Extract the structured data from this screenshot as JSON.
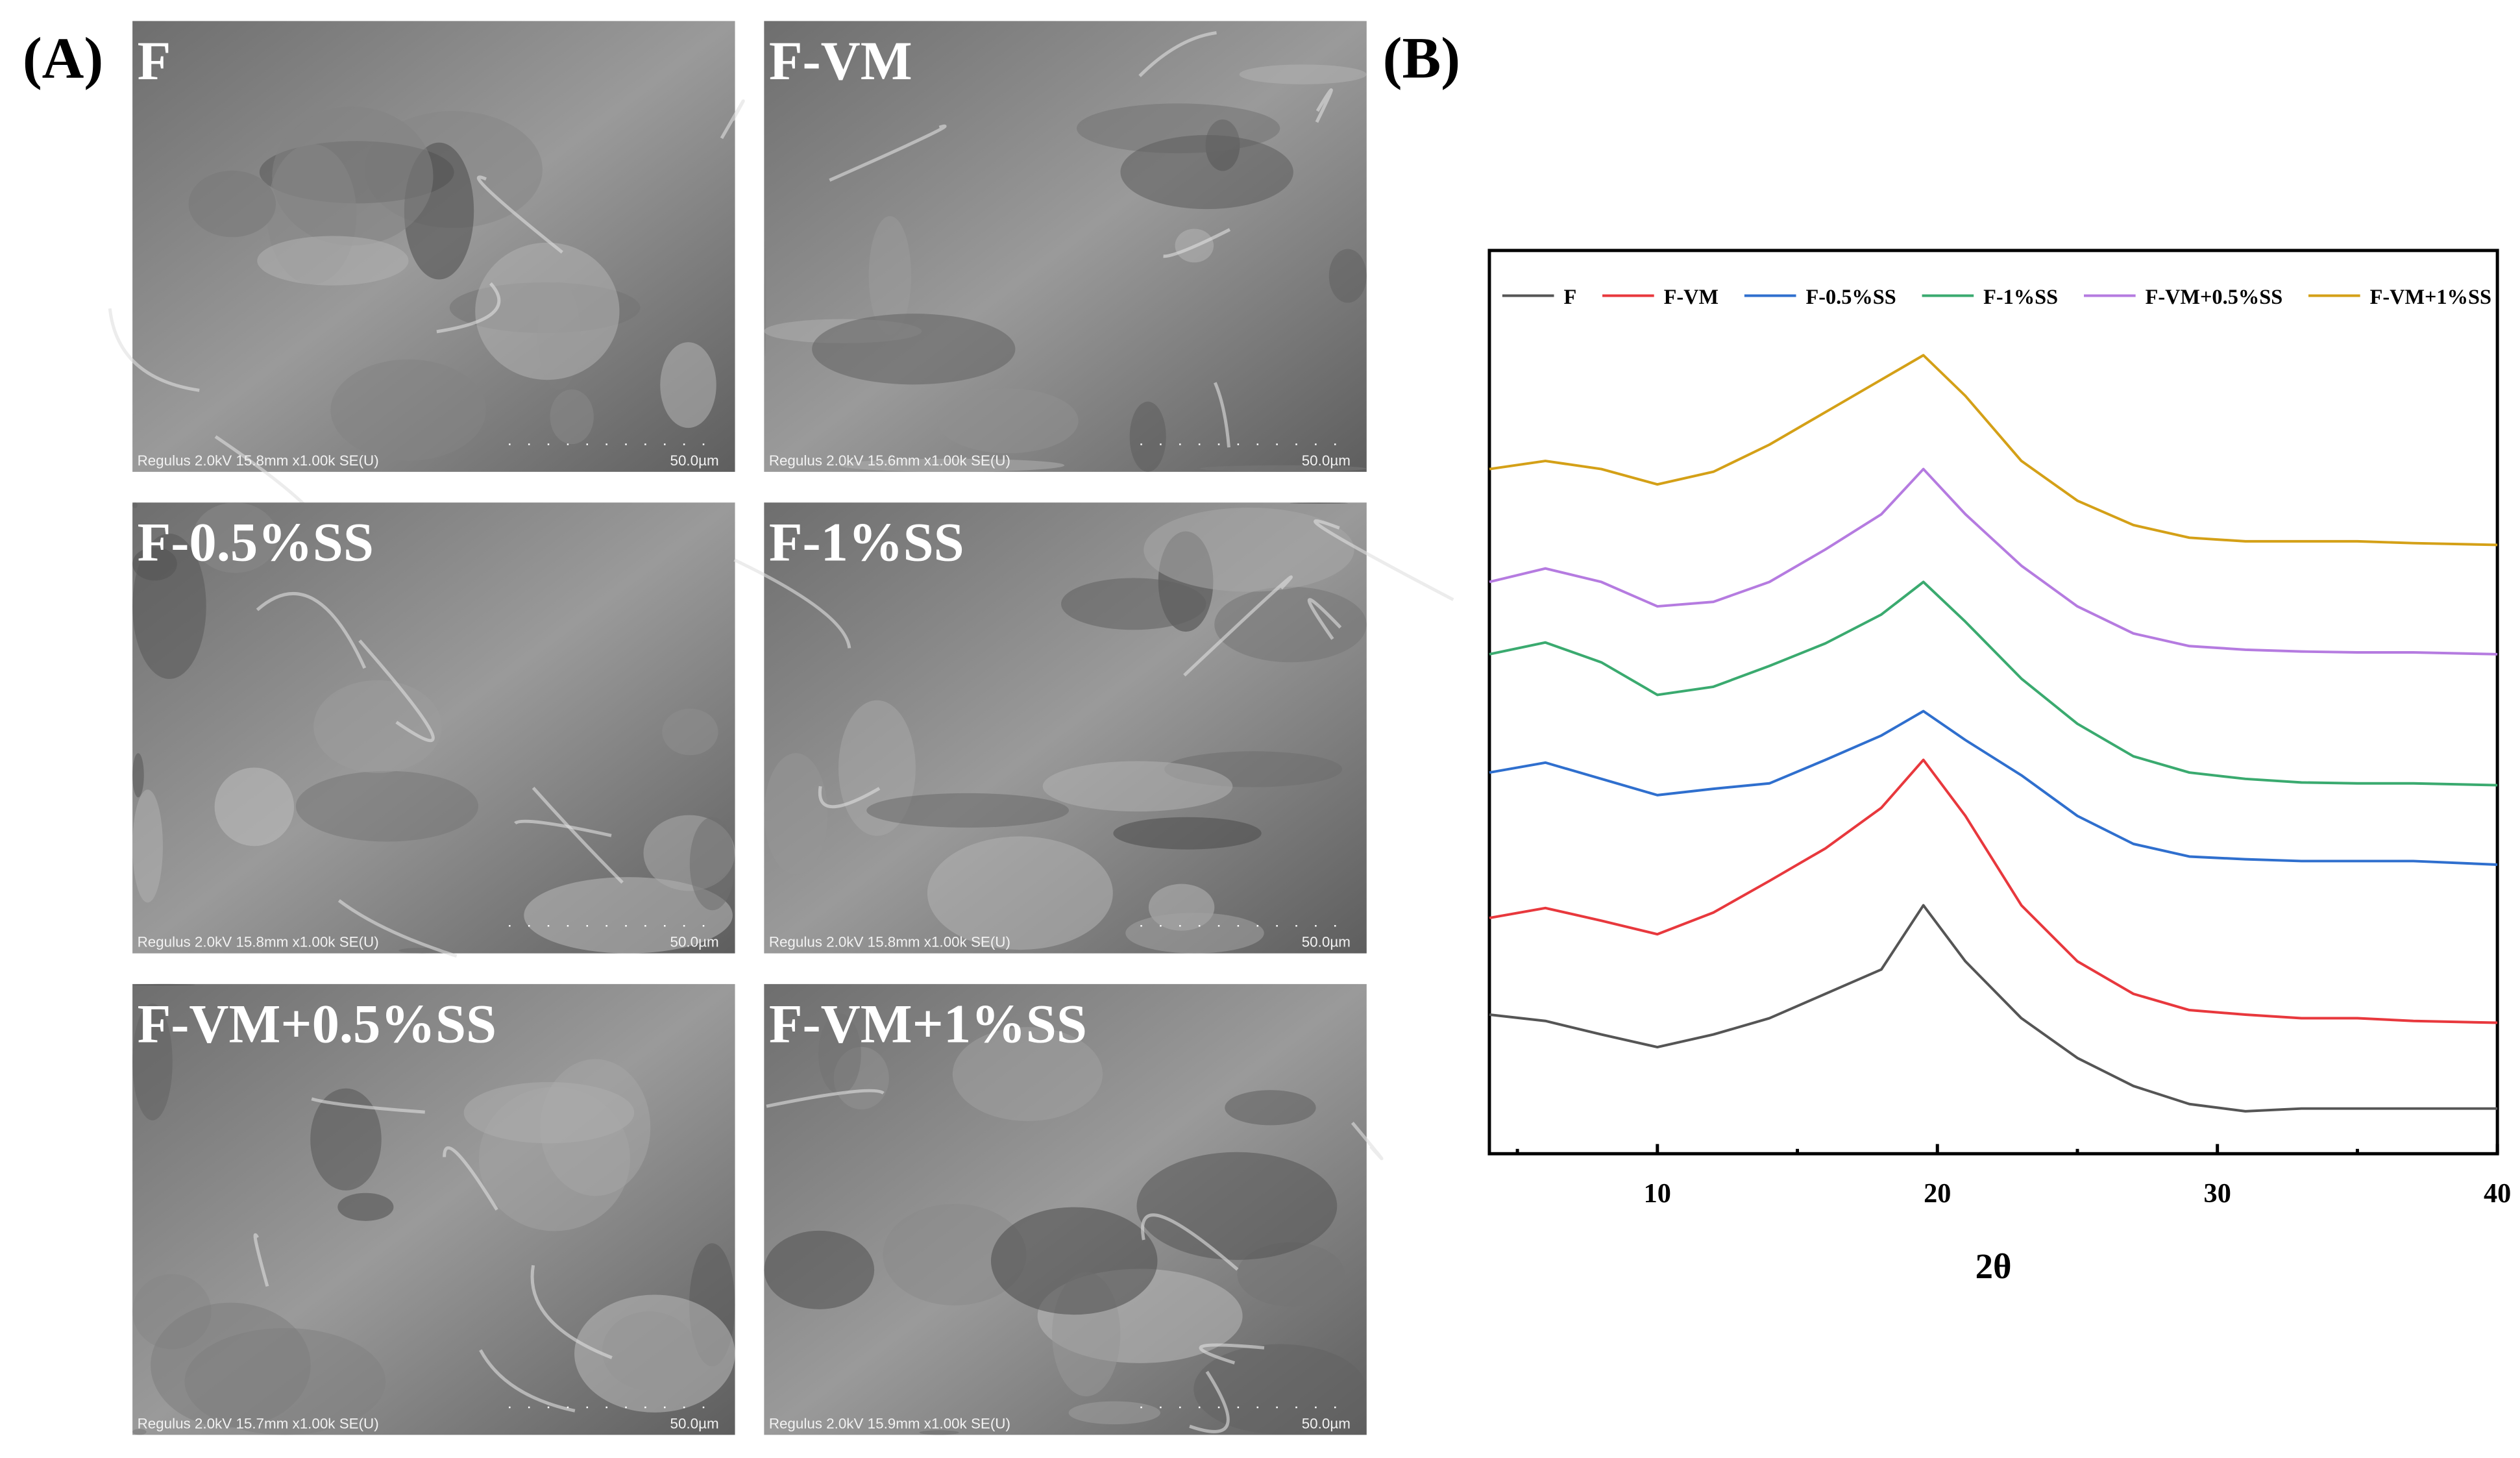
{
  "panel_a": {
    "label": "(A)",
    "images": [
      {
        "label": "F",
        "caption": "Regulus 2.0kV 15.8mm x1.00k SE(U)",
        "scale": "50.0µm"
      },
      {
        "label": "F-VM",
        "caption": "Regulus 2.0kV 15.6mm x1.00k SE(U)",
        "scale": "50.0µm"
      },
      {
        "label": "F-0.5%SS",
        "caption": "Regulus 2.0kV 15.8mm x1.00k SE(U)",
        "scale": "50.0µm"
      },
      {
        "label": "F-1%SS",
        "caption": "Regulus 2.0kV 15.8mm x1.00k SE(U)",
        "scale": "50.0µm"
      },
      {
        "label": "F-VM+0.5%SS",
        "caption": "Regulus 2.0kV 15.7mm x1.00k SE(U)",
        "scale": "50.0µm"
      },
      {
        "label": "F-VM+1%SS",
        "caption": "Regulus 2.0kV 15.9mm x1.00k SE(U)",
        "scale": "50.0µm"
      }
    ]
  },
  "panel_b": {
    "label": "(B)"
  },
  "chart_data": {
    "type": "line",
    "xlabel": "2θ",
    "x": [
      4,
      6,
      8,
      10,
      12,
      14,
      16,
      18,
      19.5,
      21,
      23,
      25,
      27,
      29,
      31,
      33,
      35,
      37,
      40
    ],
    "xlim": [
      4,
      40
    ],
    "xticks": [
      10,
      20,
      30,
      40
    ],
    "xminorticks": [
      5,
      15,
      25,
      35
    ],
    "ylim": [
      0,
      100
    ],
    "legend": "top",
    "series": [
      {
        "name": "F",
        "color": "#555555",
        "values": [
          15.4,
          14.7,
          13.2,
          11.8,
          13.2,
          15,
          17.7,
          20.4,
          27.5,
          21.3,
          15,
          10.6,
          7.5,
          5.5,
          4.7,
          5,
          5,
          5,
          5
        ]
      },
      {
        "name": "F-VM",
        "color": "#e8383d",
        "values": [
          26.1,
          27.2,
          25.8,
          24.3,
          26.7,
          30.2,
          33.8,
          38.3,
          43.6,
          37.4,
          27.5,
          21.3,
          17.7,
          15.9,
          15.4,
          15,
          15,
          14.7,
          14.5
        ]
      },
      {
        "name": "F-0.5%SS",
        "color": "#2f6fce",
        "values": [
          42.2,
          43.3,
          41.5,
          39.7,
          40.4,
          41,
          43.6,
          46.3,
          49,
          45.8,
          41.9,
          37.4,
          34.3,
          32.9,
          32.6,
          32.4,
          32.4,
          32.4,
          32
        ]
      },
      {
        "name": "F-1%SS",
        "color": "#3aaa6f",
        "values": [
          55.3,
          56.6,
          54.4,
          50.8,
          51.7,
          54,
          56.5,
          59.7,
          63.3,
          58.9,
          52.6,
          47.6,
          44,
          42.2,
          41.5,
          41.1,
          41,
          41,
          40.8
        ]
      },
      {
        "name": "F-VM+0.5%SS",
        "color": "#b57be0",
        "values": [
          63.3,
          64.8,
          63.3,
          60.6,
          61.1,
          63.3,
          66.9,
          70.8,
          75.8,
          70.8,
          65.1,
          60.6,
          57.6,
          56.2,
          55.8,
          55.6,
          55.5,
          55.5,
          55.3
        ]
      },
      {
        "name": "F-VM+1%SS",
        "color": "#d4a017",
        "values": [
          75.8,
          76.7,
          75.8,
          74.1,
          75.5,
          78.5,
          82.1,
          85.7,
          88.4,
          83.9,
          76.7,
          72.3,
          69.6,
          68.2,
          67.8,
          67.8,
          67.8,
          67.6,
          67.4
        ]
      }
    ]
  }
}
